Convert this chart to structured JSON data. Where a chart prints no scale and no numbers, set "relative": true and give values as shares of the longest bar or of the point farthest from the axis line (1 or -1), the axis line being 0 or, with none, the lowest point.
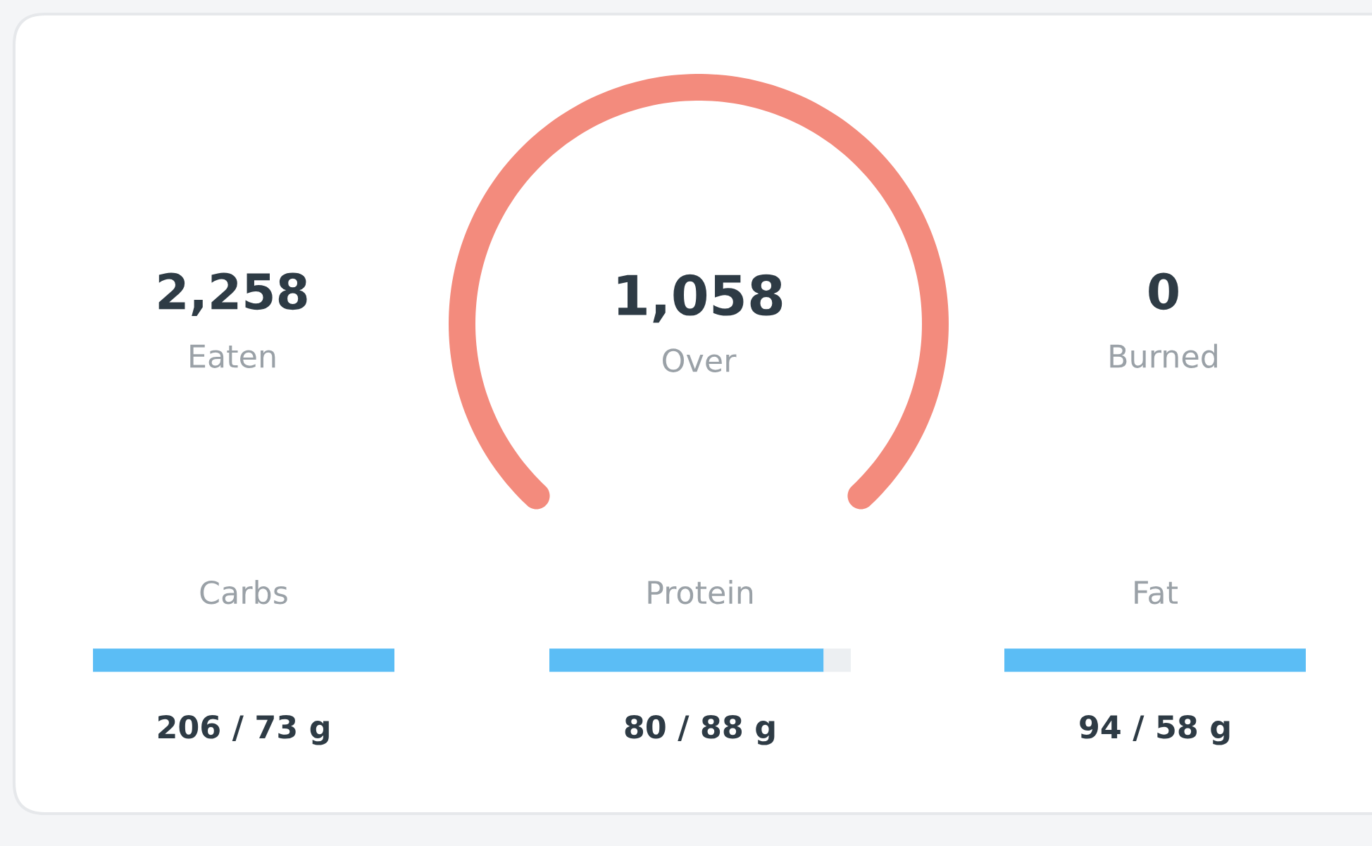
{
  "chart_data": [
    {
      "type": "pie",
      "categories": [
        null
      ],
      "values": [
        100
      ],
      "colors": [
        "#f38b7d"
      ],
      "annotations": [
        "2,258",
        "Eaten",
        "1,058",
        "Over",
        "0",
        "Burned"
      ]
    },
    {
      "type": "bar",
      "orientation": "horizontal",
      "relative": true,
      "stacked": true,
      "categories": [
        "Carbs"
      ],
      "series": [
        {
          "color": "#5bbdf5",
          "values": [
            1
          ]
        },
        {
          "color": "#eceff2",
          "values": [
            0
          ]
        }
      ],
      "annotations": [
        "206 / 73 g"
      ]
    },
    {
      "type": "bar",
      "orientation": "horizontal",
      "relative": true,
      "stacked": true,
      "categories": [
        "Protein"
      ],
      "series": [
        {
          "color": "#5bbdf5",
          "values": [
            0.91
          ]
        },
        {
          "color": "#eceff2",
          "values": [
            0.09
          ]
        }
      ],
      "annotations": [
        "80 / 88 g"
      ]
    },
    {
      "type": "bar",
      "orientation": "horizontal",
      "relative": true,
      "stacked": true,
      "categories": [
        "Fat"
      ],
      "series": [
        {
          "color": "#5bbdf5",
          "values": [
            1
          ]
        },
        {
          "color": "#eceff2",
          "values": [
            0
          ]
        }
      ],
      "annotations": [
        "94 / 58 g"
      ]
    }
  ]
}
